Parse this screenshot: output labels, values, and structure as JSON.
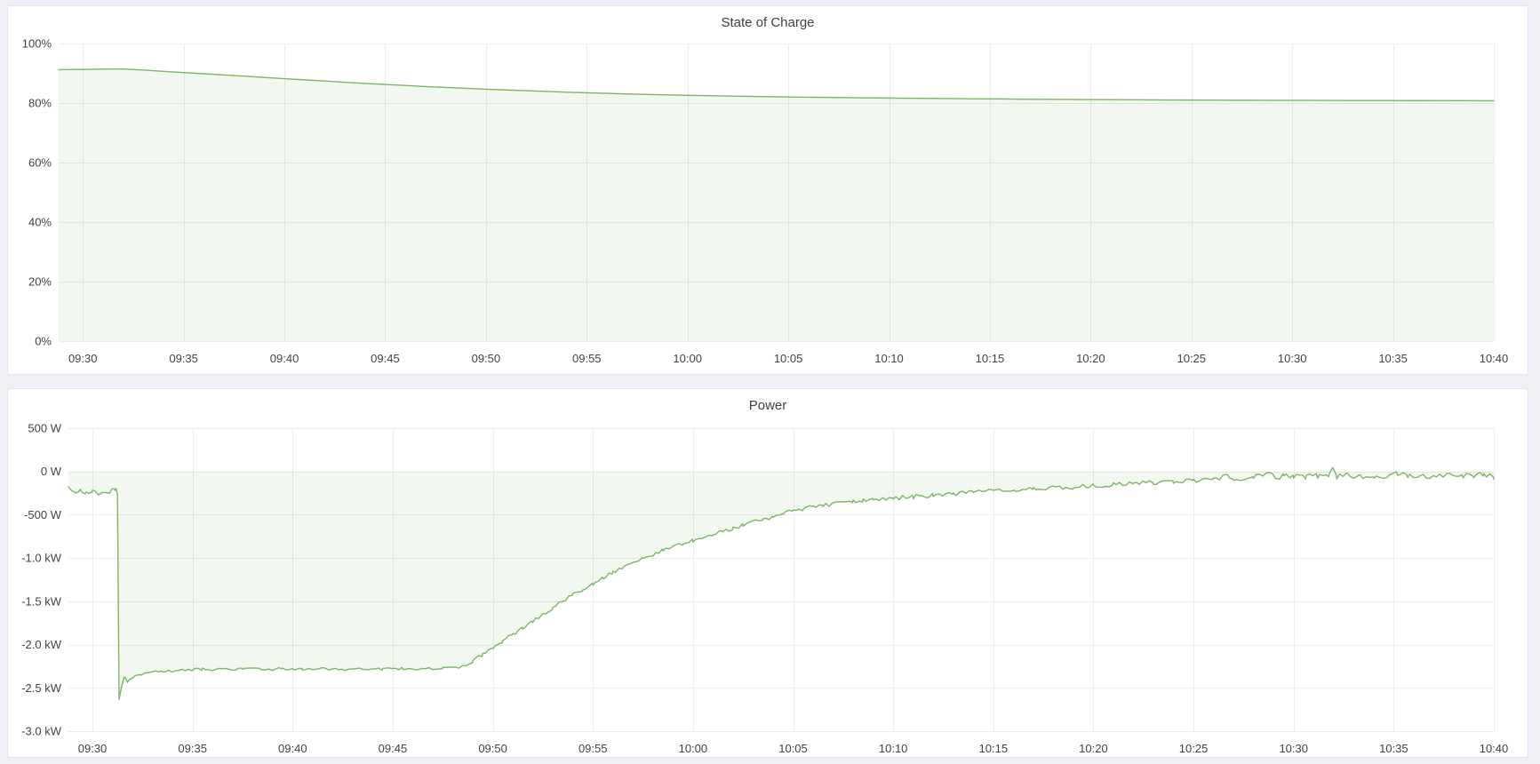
{
  "page": {
    "background_color": "#eef0f5",
    "panel_background": "#ffffff",
    "panel_border_color": "#e3e5ea",
    "grid_color": "#ebeced",
    "tick_text_color": "#3f434a",
    "title_text_color": "#3b3f46"
  },
  "chart_data": [
    {
      "type": "area",
      "title": "State of Charge",
      "xlabel": "",
      "ylabel": "",
      "unit": "%",
      "line_color": "#7eb566",
      "fill_color": "rgba(126,181,102,0.10)",
      "x_tick_labels": [
        "09:30",
        "09:35",
        "09:40",
        "09:45",
        "09:50",
        "09:55",
        "10:00",
        "10:05",
        "10:10",
        "10:15",
        "10:20",
        "10:25",
        "10:30",
        "10:35",
        "10:40"
      ],
      "x_tick_minutes": [
        0,
        5,
        10,
        15,
        20,
        25,
        30,
        35,
        40,
        45,
        50,
        55,
        60,
        65,
        70
      ],
      "y_ticks": [
        {
          "value": 0,
          "label": "0%"
        },
        {
          "value": 20,
          "label": "20%"
        },
        {
          "value": 40,
          "label": "40%"
        },
        {
          "value": 60,
          "label": "60%"
        },
        {
          "value": 80,
          "label": "80%"
        },
        {
          "value": 100,
          "label": "100%"
        }
      ],
      "ylim": [
        0,
        100
      ],
      "x_domain_minutes": [
        -1.2,
        70
      ],
      "fill_baseline_value": 0,
      "legend": "none",
      "grid": "on",
      "noise_segments": [],
      "points": [
        [
          -1.2,
          91.2
        ],
        [
          0,
          91.3
        ],
        [
          1,
          91.4
        ],
        [
          2,
          91.45
        ],
        [
          3,
          91.1
        ],
        [
          4,
          90.65
        ],
        [
          5,
          90.25
        ],
        [
          6,
          89.85
        ],
        [
          7,
          89.45
        ],
        [
          8,
          89.05
        ],
        [
          9,
          88.6
        ],
        [
          10,
          88.2
        ],
        [
          11,
          87.8
        ],
        [
          12,
          87.4
        ],
        [
          13,
          87.0
        ],
        [
          14,
          86.6
        ],
        [
          15,
          86.25
        ],
        [
          16,
          85.9
        ],
        [
          17,
          85.55
        ],
        [
          18,
          85.25
        ],
        [
          19,
          84.95
        ],
        [
          20,
          84.65
        ],
        [
          21,
          84.4
        ],
        [
          22,
          84.15
        ],
        [
          23,
          83.9
        ],
        [
          24,
          83.65
        ],
        [
          25,
          83.45
        ],
        [
          26,
          83.25
        ],
        [
          27,
          83.05
        ],
        [
          28,
          82.9
        ],
        [
          29,
          82.75
        ],
        [
          30,
          82.6
        ],
        [
          31,
          82.48
        ],
        [
          32,
          82.36
        ],
        [
          33,
          82.25
        ],
        [
          34,
          82.15
        ],
        [
          35,
          82.05
        ],
        [
          36,
          81.97
        ],
        [
          37,
          81.9
        ],
        [
          38,
          81.82
        ],
        [
          39,
          81.75
        ],
        [
          40,
          81.68
        ],
        [
          41,
          81.62
        ],
        [
          42,
          81.56
        ],
        [
          43,
          81.5
        ],
        [
          44,
          81.45
        ],
        [
          45,
          81.4
        ],
        [
          46,
          81.35
        ],
        [
          47,
          81.3
        ],
        [
          48,
          81.26
        ],
        [
          49,
          81.22
        ],
        [
          50,
          81.18
        ],
        [
          51,
          81.14
        ],
        [
          52,
          81.1
        ],
        [
          53,
          81.07
        ],
        [
          54,
          81.04
        ],
        [
          55,
          81.01
        ],
        [
          56,
          80.98
        ],
        [
          57,
          80.96
        ],
        [
          58,
          80.94
        ],
        [
          59,
          80.92
        ],
        [
          60,
          80.9
        ],
        [
          62,
          80.87
        ],
        [
          64,
          80.84
        ],
        [
          66,
          80.82
        ],
        [
          68,
          80.8
        ],
        [
          70,
          80.78
        ]
      ]
    },
    {
      "type": "area",
      "title": "Power",
      "xlabel": "",
      "ylabel": "",
      "unit": "W",
      "line_color": "#7eb566",
      "fill_color": "rgba(126,181,102,0.10)",
      "x_tick_labels": [
        "09:30",
        "09:35",
        "09:40",
        "09:45",
        "09:50",
        "09:55",
        "10:00",
        "10:05",
        "10:10",
        "10:15",
        "10:20",
        "10:25",
        "10:30",
        "10:35",
        "10:40"
      ],
      "x_tick_minutes": [
        0,
        5,
        10,
        15,
        20,
        25,
        30,
        35,
        40,
        45,
        50,
        55,
        60,
        65,
        70
      ],
      "y_ticks": [
        {
          "value": 500,
          "label": "500 W"
        },
        {
          "value": 0,
          "label": "0 W"
        },
        {
          "value": -500,
          "label": "-500 W"
        },
        {
          "value": -1000,
          "label": "-1.0 kW"
        },
        {
          "value": -1500,
          "label": "-1.5 kW"
        },
        {
          "value": -2000,
          "label": "-2.0 kW"
        },
        {
          "value": -2500,
          "label": "-2.5 kW"
        },
        {
          "value": -3000,
          "label": "-3.0 kW"
        }
      ],
      "ylim": [
        -3000,
        500
      ],
      "x_domain_minutes": [
        -1.2,
        70
      ],
      "fill_baseline_value": 0,
      "legend": "none",
      "grid": "on",
      "noise_segments": [
        {
          "from": -1.2,
          "to": 1.25,
          "amplitude_w": 18
        },
        {
          "from": 1.25,
          "to": 18.5,
          "amplitude_w": 15
        },
        {
          "from": 18.5,
          "to": 40,
          "amplitude_w": 22
        },
        {
          "from": 40,
          "to": 57,
          "amplitude_w": 24
        },
        {
          "from": 57,
          "to": 70,
          "amplitude_w": 30
        }
      ],
      "points": [
        [
          -1.2,
          -195
        ],
        [
          -0.9,
          -235
        ],
        [
          -0.6,
          -215
        ],
        [
          -0.3,
          -250
        ],
        [
          0,
          -230
        ],
        [
          0.3,
          -255
        ],
        [
          0.6,
          -235
        ],
        [
          0.85,
          -260
        ],
        [
          1.05,
          -190
        ],
        [
          1.18,
          -210
        ],
        [
          1.25,
          -270
        ],
        [
          1.33,
          -2630
        ],
        [
          1.47,
          -2480
        ],
        [
          1.58,
          -2380
        ],
        [
          1.75,
          -2430
        ],
        [
          1.95,
          -2380
        ],
        [
          2.3,
          -2360
        ],
        [
          2.8,
          -2330
        ],
        [
          3.5,
          -2310
        ],
        [
          4.5,
          -2295
        ],
        [
          5.5,
          -2285
        ],
        [
          6.5,
          -2290
        ],
        [
          7.5,
          -2280
        ],
        [
          8.5,
          -2288
        ],
        [
          9.5,
          -2278
        ],
        [
          10.5,
          -2286
        ],
        [
          11.5,
          -2278
        ],
        [
          12.5,
          -2284
        ],
        [
          13.5,
          -2276
        ],
        [
          14.5,
          -2284
        ],
        [
          15.5,
          -2278
        ],
        [
          16.5,
          -2282
        ],
        [
          17.5,
          -2276
        ],
        [
          18.3,
          -2272
        ],
        [
          18.7,
          -2240
        ],
        [
          19,
          -2195
        ],
        [
          19.5,
          -2115
        ],
        [
          20,
          -2040
        ],
        [
          20.5,
          -1962
        ],
        [
          21,
          -1885
        ],
        [
          21.5,
          -1808
        ],
        [
          22,
          -1730
        ],
        [
          22.5,
          -1652
        ],
        [
          23,
          -1575
        ],
        [
          23.5,
          -1500
        ],
        [
          24,
          -1428
        ],
        [
          24.5,
          -1358
        ],
        [
          25,
          -1290
        ],
        [
          25.5,
          -1228
        ],
        [
          26,
          -1168
        ],
        [
          26.5,
          -1112
        ],
        [
          27,
          -1058
        ],
        [
          27.5,
          -1008
        ],
        [
          28,
          -960
        ],
        [
          28.5,
          -914
        ],
        [
          29,
          -872
        ],
        [
          29.5,
          -834
        ],
        [
          30,
          -798
        ],
        [
          30.5,
          -762
        ],
        [
          31,
          -727
        ],
        [
          31.5,
          -692
        ],
        [
          32,
          -657
        ],
        [
          32.5,
          -622
        ],
        [
          33,
          -588
        ],
        [
          33.5,
          -554
        ],
        [
          34,
          -520
        ],
        [
          34.5,
          -487
        ],
        [
          35,
          -456
        ],
        [
          35.5,
          -431
        ],
        [
          36,
          -410
        ],
        [
          36.5,
          -391
        ],
        [
          37,
          -375
        ],
        [
          37.5,
          -361
        ],
        [
          38,
          -349
        ],
        [
          38.5,
          -338
        ],
        [
          39,
          -328
        ],
        [
          39.5,
          -318
        ],
        [
          40,
          -309
        ],
        [
          41,
          -293
        ],
        [
          42,
          -276
        ],
        [
          43,
          -258
        ],
        [
          44,
          -240
        ],
        [
          45,
          -222
        ],
        [
          46,
          -210
        ],
        [
          47,
          -200
        ],
        [
          48,
          -190
        ],
        [
          49,
          -180
        ],
        [
          50,
          -165
        ],
        [
          51,
          -152
        ],
        [
          52,
          -140
        ],
        [
          53,
          -128
        ],
        [
          54,
          -118
        ],
        [
          55,
          -108
        ],
        [
          56,
          -96
        ],
        [
          56.7,
          -45
        ],
        [
          57,
          -85
        ],
        [
          58,
          -70
        ],
        [
          58.8,
          -20
        ],
        [
          59.1,
          -70
        ],
        [
          59.5,
          -55
        ],
        [
          60,
          -48
        ],
        [
          60.6,
          -60
        ],
        [
          61.2,
          -52
        ],
        [
          61.75,
          -58
        ],
        [
          61.95,
          40
        ],
        [
          62.15,
          -62
        ],
        [
          62.7,
          -48
        ],
        [
          63.3,
          -55
        ],
        [
          64,
          -50
        ],
        [
          64.7,
          -58
        ],
        [
          65.2,
          -15
        ],
        [
          65.7,
          -55
        ],
        [
          66.3,
          -45
        ],
        [
          67,
          -55
        ],
        [
          67.7,
          -42
        ],
        [
          68.4,
          -52
        ],
        [
          69,
          -45
        ],
        [
          69.5,
          -35
        ],
        [
          69.8,
          -55
        ],
        [
          70,
          -90
        ]
      ]
    }
  ]
}
